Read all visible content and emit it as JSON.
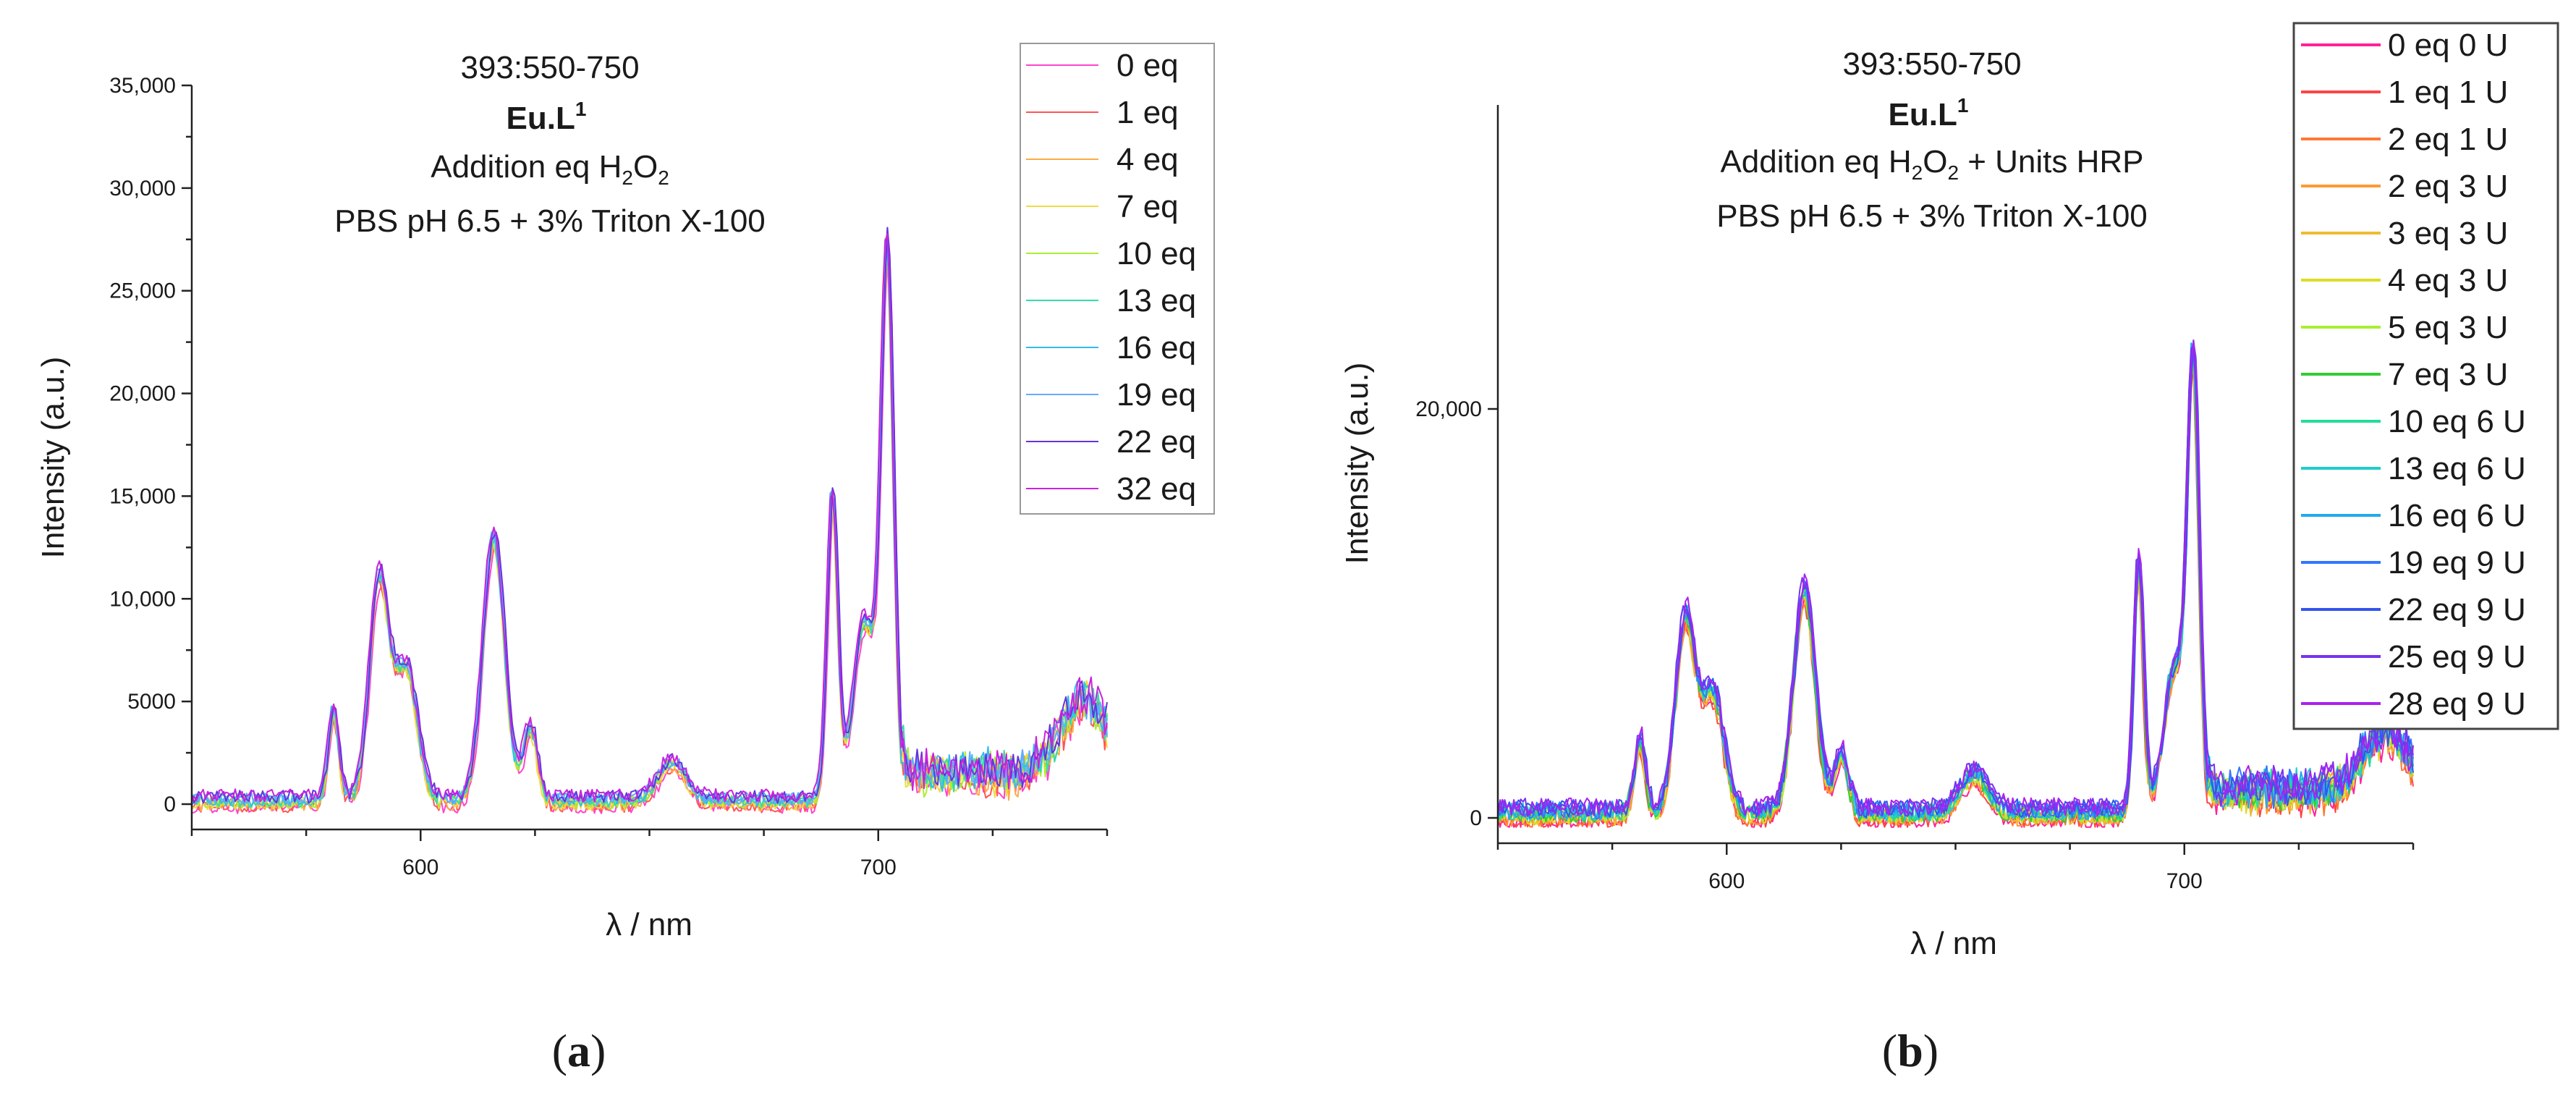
{
  "chart_data": [
    {
      "type": "line",
      "panel_label": "a",
      "title_lines": [
        "393:550-750",
        "Eu.L",
        "Addition eq H",
        "PBS pH 6.5 + 3% Triton X-100"
      ],
      "title": "393:550-750",
      "compound": "Eu.L",
      "compound_sup": "1",
      "condition_parts": [
        "Addition eq H",
        "2",
        "O",
        "2",
        ""
      ],
      "buffer": "PBS pH 6.5 + 3% Triton X-100",
      "xlabel": "λ / nm",
      "ylabel": "Intensity (a.u.)",
      "xlim": [
        550,
        750
      ],
      "ylim": [
        -500,
        35000
      ],
      "xticks": [
        600,
        700
      ],
      "xtick_labels": [
        "600",
        "700"
      ],
      "yticks": [
        0,
        5000,
        10000,
        15000,
        20000,
        25000,
        30000,
        35000
      ],
      "ytick_labels": [
        "0",
        "5000",
        "10,000",
        "15,000",
        "20,000",
        "25,000",
        "30,000",
        "35,000"
      ],
      "legend_position": "top-right",
      "grid": false,
      "series": [
        {
          "name": "0 eq",
          "color": "#ff44cc"
        },
        {
          "name": "1 eq",
          "color": "#ff5555"
        },
        {
          "name": "4 eq",
          "color": "#ffaa44"
        },
        {
          "name": "7 eq",
          "color": "#eedd44"
        },
        {
          "name": "10 eq",
          "color": "#aaee33"
        },
        {
          "name": "13 eq",
          "color": "#33ddaa"
        },
        {
          "name": "16 eq",
          "color": "#33bbee"
        },
        {
          "name": "19 eq",
          "color": "#66aaff"
        },
        {
          "name": "22 eq",
          "color": "#6633dd"
        },
        {
          "name": "32 eq",
          "color": "#cc22dd"
        }
      ],
      "peaks": [
        [
          581,
          4200,
          1.2
        ],
        [
          591,
          10500,
          2.2
        ],
        [
          597,
          6200,
          2.4
        ],
        [
          616,
          12500,
          2.4
        ],
        [
          624,
          3500,
          1.5
        ],
        [
          655,
          1800,
          3
        ],
        [
          690,
          14500,
          1.2
        ],
        [
          697,
          8500,
          2.5
        ],
        [
          702,
          25500,
          1.4
        ],
        [
          745,
          3500,
          5
        ]
      ],
      "baseline": 400,
      "tail_start": 705,
      "tail_level": 1500
    },
    {
      "type": "line",
      "panel_label": "b",
      "title": "393:550-750",
      "compound": "Eu.L",
      "compound_sup": "1",
      "condition_parts": [
        "Addition eq H",
        "2",
        "O",
        "2",
        " + Units HRP"
      ],
      "buffer": "PBS pH 6.5 + 3% Triton X-100",
      "xlabel": "λ / nm",
      "ylabel": "Intensity (a.u.)",
      "xlim": [
        550,
        750
      ],
      "ylim": [
        -500,
        35000
      ],
      "xticks": [
        600,
        700
      ],
      "xtick_labels": [
        "600",
        "700"
      ],
      "yticks": [
        0,
        20000
      ],
      "ytick_labels": [
        "0",
        "20,000"
      ],
      "legend_position": "top-right",
      "grid": false,
      "series": [
        {
          "name": "0 eq 0 U",
          "color": "#ff2299"
        },
        {
          "name": "1 eq 1 U",
          "color": "#ff4444"
        },
        {
          "name": "2 eq 1 U",
          "color": "#ff7733"
        },
        {
          "name": "2 eq 3 U",
          "color": "#ff9933"
        },
        {
          "name": "3 eq 3 U",
          "color": "#eebb33"
        },
        {
          "name": "4 eq 3 U",
          "color": "#dddd22"
        },
        {
          "name": "5 eq 3 U",
          "color": "#aaee33"
        },
        {
          "name": "7 eq 3 U",
          "color": "#33cc33"
        },
        {
          "name": "10 eq 6 U",
          "color": "#22dd99"
        },
        {
          "name": "13 eq 6 U",
          "color": "#22cccc"
        },
        {
          "name": "16 eq 6 U",
          "color": "#22aaee"
        },
        {
          "name": "19 eq 9 U",
          "color": "#3377ff"
        },
        {
          "name": "22 eq 9 U",
          "color": "#3355ee"
        },
        {
          "name": "25 eq 9 U",
          "color": "#7733ee"
        },
        {
          "name": "28 eq 9 U",
          "color": "#aa22ee"
        }
      ],
      "peaks": [
        [
          581,
          3800,
          1.2
        ],
        [
          591,
          10000,
          2.2
        ],
        [
          597,
          6000,
          2.4
        ],
        [
          617,
          11500,
          2.4
        ],
        [
          625,
          3000,
          1.5
        ],
        [
          654,
          2000,
          3
        ],
        [
          690,
          13000,
          1.1
        ],
        [
          698,
          7500,
          2.5
        ],
        [
          702,
          22000,
          1.3
        ],
        [
          744,
          3000,
          5
        ]
      ],
      "baseline": 500,
      "tail_start": 705,
      "tail_level": 1200
    }
  ]
}
